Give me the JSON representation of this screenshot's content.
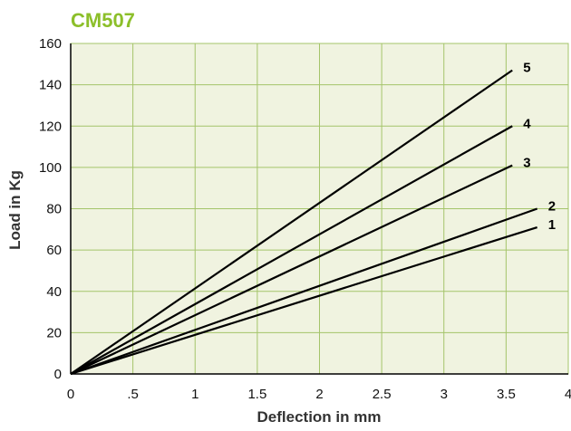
{
  "colors": {
    "title": "#8cbf2a",
    "plot_background": "#f0f3e0",
    "grid": "#a4c46a",
    "axis": "#000000",
    "lines": "#000000"
  },
  "chart_data": {
    "type": "line",
    "title": "CM507",
    "xlabel": "Deflection in mm",
    "ylabel": "Load in Kg",
    "xlim": [
      0,
      4
    ],
    "ylim": [
      0,
      160
    ],
    "x_ticks": [
      0,
      0.5,
      1,
      1.5,
      2,
      2.5,
      3,
      3.5,
      4
    ],
    "x_tick_labels": [
      "0",
      ".5",
      "1",
      "1.5",
      "2",
      "2.5",
      "3",
      "3.5",
      "4"
    ],
    "y_ticks": [
      0,
      20,
      40,
      60,
      80,
      100,
      120,
      140,
      160
    ],
    "y_tick_labels": [
      "0",
      "20",
      "40",
      "60",
      "80",
      "100",
      "120",
      "140",
      "160"
    ],
    "grid": true,
    "series": [
      {
        "name": "1",
        "x": [
          0,
          3.75
        ],
        "y": [
          0,
          71
        ]
      },
      {
        "name": "2",
        "x": [
          0,
          3.75
        ],
        "y": [
          0,
          80
        ]
      },
      {
        "name": "3",
        "x": [
          0,
          3.55
        ],
        "y": [
          0,
          101
        ]
      },
      {
        "name": "4",
        "x": [
          0,
          3.55
        ],
        "y": [
          0,
          120
        ]
      },
      {
        "name": "5",
        "x": [
          0,
          3.55
        ],
        "y": [
          0,
          147
        ]
      }
    ]
  }
}
